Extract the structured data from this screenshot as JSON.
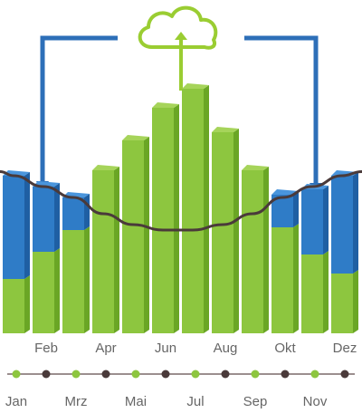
{
  "colors": {
    "green": "#8dc63f",
    "green_side": "#6aa625",
    "green_top": "#a6d45a",
    "blue": "#2f7cc7",
    "blue_side": "#1f5fa3",
    "blue_top": "#4a95dc",
    "curve": "#4a3a3a",
    "arrow_blue": "#2d6fb8",
    "cloud": "#9acd32",
    "timeline": "#7a6a6a",
    "dot_green": "#8dc63f",
    "dot_dark": "#4a3a3a",
    "label": "#666666"
  },
  "icons": {
    "cloud": "cloud-upload-icon",
    "left_arrow": "arrow-down-left-icon",
    "right_arrow": "arrow-down-right-icon"
  },
  "chart_data": {
    "type": "bar",
    "stacked": true,
    "categories": [
      "Jan",
      "Feb",
      "Mrz",
      "Apr",
      "Mai",
      "Jun",
      "Jul",
      "Aug",
      "Sep",
      "Okt",
      "Nov",
      "Dez"
    ],
    "series": [
      {
        "values": [
          2.0,
          3.0,
          3.8,
          6.0,
          7.1,
          8.3,
          9.0,
          7.4,
          6.0,
          3.9,
          2.9,
          2.2
        ]
      },
      {
        "values": [
          3.8,
          2.4,
          1.2,
          0,
          0,
          0,
          0,
          0,
          0,
          1.2,
          2.4,
          3.6
        ]
      }
    ],
    "curve": [
      5.8,
      5.4,
      5.0,
      4.4,
      4.0,
      3.8,
      3.8,
      4.0,
      4.4,
      5.0,
      5.4,
      5.8
    ],
    "ylim": [
      0,
      9
    ],
    "top_labels": [
      "Feb",
      "Apr",
      "Jun",
      "Aug",
      "Okt",
      "Dez"
    ],
    "bottom_labels": [
      "Jan",
      "Mrz",
      "Mai",
      "Jul",
      "Sep",
      "Nov"
    ],
    "timeline_dots": [
      "green",
      "dark",
      "green",
      "dark",
      "green",
      "dark",
      "green",
      "dark",
      "green",
      "dark",
      "green",
      "dark"
    ]
  }
}
